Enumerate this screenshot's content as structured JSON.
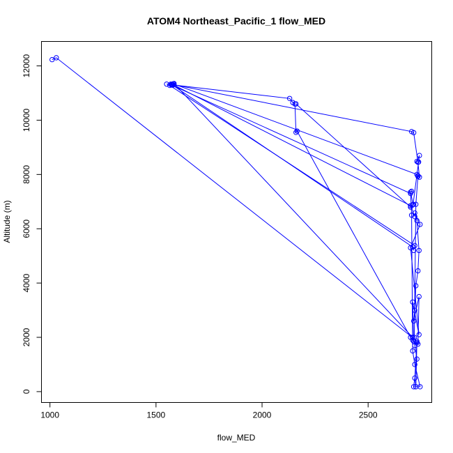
{
  "chart_data": {
    "type": "line",
    "title": "ATOM4 Northeast_Pacific_1 flow_MED",
    "xlabel": "flow_MED",
    "ylabel": "Altitude (m)",
    "xlim": [
      960,
      2800
    ],
    "ylim": [
      -400,
      12900
    ],
    "xticks": [
      1000,
      1500,
      2000,
      2500
    ],
    "yticks": [
      0,
      2000,
      4000,
      6000,
      8000,
      10000,
      12000
    ],
    "grid": false,
    "marker": "open-circle",
    "color": "#0000ff",
    "series": [
      {
        "x": [
          1010,
          1030,
          2710,
          2720,
          2730,
          2715,
          2725,
          2720,
          2730,
          2735,
          2740,
          2715,
          2720,
          2725,
          2735,
          2740,
          2730,
          2720,
          2745,
          2700,
          2740,
          2710,
          2715
        ],
        "y": [
          12230,
          12300,
          1990,
          1700,
          1200,
          180,
          180,
          500,
          1800,
          1750,
          3500,
          2600,
          3000,
          3900,
          4450,
          5200,
          6300,
          6580,
          6160,
          5300,
          2100,
          3300,
          1850
        ]
      },
      {
        "x": [
          1550,
          1570,
          1585,
          2710,
          2730,
          2725,
          2745,
          2720,
          2710,
          2705,
          2700,
          2712,
          2738,
          2742,
          2730
        ],
        "y": [
          11330,
          11330,
          11350,
          2000,
          1850,
          180,
          180,
          1000,
          1500,
          6500,
          7350,
          6900,
          8460,
          8700,
          8480
        ]
      },
      {
        "x": [
          1580,
          2130,
          2145,
          2155,
          2160,
          2165,
          2700,
          2710
        ],
        "y": [
          11300,
          10800,
          10650,
          10600,
          9550,
          9600,
          2000,
          1900
        ]
      },
      {
        "x": [
          1575,
          2705,
          2715,
          2735,
          2742,
          2735,
          2725,
          2718
        ],
        "y": [
          11320,
          9580,
          9540,
          8450,
          7900,
          7930,
          6900,
          2000
        ]
      },
      {
        "x": [
          1580,
          2700,
          2720
        ],
        "y": [
          11310,
          6850,
          6450
        ]
      },
      {
        "x": [
          1578,
          2710,
          2715
        ],
        "y": [
          11290,
          5330,
          5200
        ]
      },
      {
        "x": [
          1572,
          2700,
          2705
        ],
        "y": [
          11300,
          7300,
          7380
        ]
      },
      {
        "x": [
          1582,
          2730,
          2735
        ],
        "y": [
          11340,
          8000,
          7950
        ]
      },
      {
        "x": [
          2160,
          2700,
          2710
        ],
        "y": [
          10600,
          6800,
          6880
        ]
      },
      {
        "x": [
          1565,
          2720
        ],
        "y": [
          11280,
          5380
        ]
      }
    ]
  }
}
